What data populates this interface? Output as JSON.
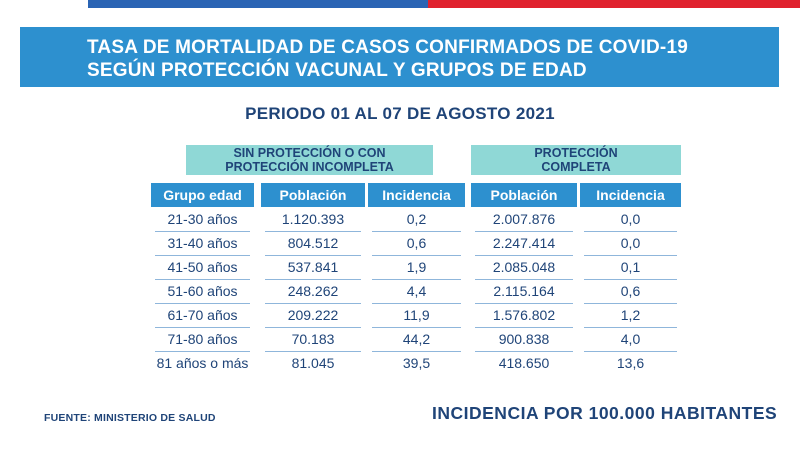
{
  "title_line1": "TASA DE MORTALIDAD DE CASOS CONFIRMADOS DE COVID-19",
  "title_line2": "SEGÚN PROTECCIÓN VACUNAL Y GRUPOS DE EDAD",
  "period": "PERIODO 01 AL 07 DE AGOSTO 2021",
  "group_headers": {
    "sin_line1": "SIN PROTECCIÓN O CON",
    "sin_line2": "PROTECCIÓN INCOMPLETA",
    "completa_line1": "PROTECCIÓN",
    "completa_line2": "COMPLETA"
  },
  "columns": [
    "Grupo edad",
    "Población",
    "Incidencia",
    "Población",
    "Incidencia"
  ],
  "rows": [
    [
      "21-30 años",
      "1.120.393",
      "0,2",
      "2.007.876",
      "0,0"
    ],
    [
      "31-40 años",
      "804.512",
      "0,6",
      "2.247.414",
      "0,0"
    ],
    [
      "41-50 años",
      "537.841",
      "1,9",
      "2.085.048",
      "0,1"
    ],
    [
      "51-60 años",
      "248.262",
      "4,4",
      "2.115.164",
      "0,6"
    ],
    [
      "61-70 años",
      "209.222",
      "11,9",
      "1.576.802",
      "1,2"
    ],
    [
      "71-80 años",
      "70.183",
      "44,2",
      "900.838",
      "4,0"
    ],
    [
      "81 años o más",
      "81.045",
      "39,5",
      "418.650",
      "13,6"
    ]
  ],
  "source": "FUENTE: MINISTERIO DE SALUD",
  "note": "INCIDENCIA POR 100.000 HABITANTES",
  "colors": {
    "banner": "#2d90cf",
    "group_header": "#8fd8d6",
    "text": "#1f4478",
    "top_bar_blue": "#2a64b4",
    "top_bar_red": "#e0222e"
  }
}
